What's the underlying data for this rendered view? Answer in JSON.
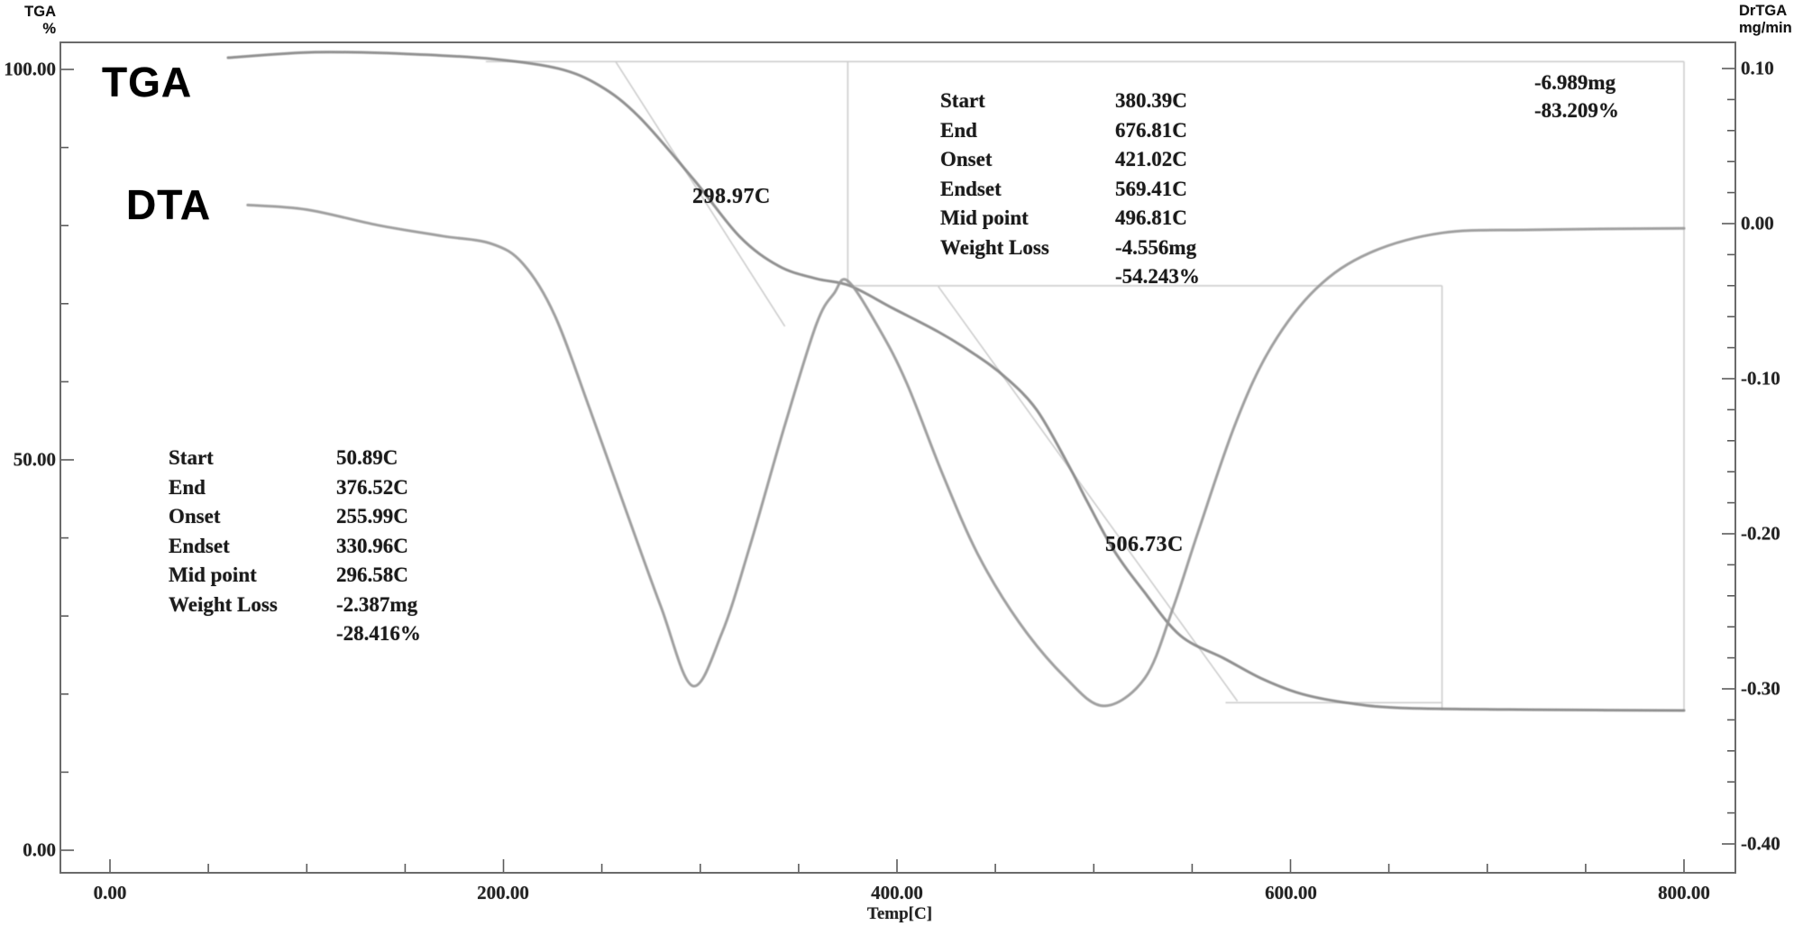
{
  "colors": {
    "tga_curve": "#878787",
    "dta_curve": "#979797",
    "construction_line": "#cdcdcd",
    "frame": "#6a6a6a",
    "text": "#1a1a1a"
  },
  "axes": {
    "left": {
      "title_line1": "TGA",
      "title_line2": "%",
      "ticks": [
        {
          "label": "100.00"
        },
        {
          "label": "50.00"
        },
        {
          "label": "0.00"
        }
      ]
    },
    "right": {
      "title_line1": "DrTGA",
      "title_line2": "mg/min",
      "ticks": [
        {
          "label": "0.10"
        },
        {
          "label": "0.00"
        },
        {
          "label": "-0.10"
        },
        {
          "label": "-0.20"
        },
        {
          "label": "-0.30"
        },
        {
          "label": "-0.40"
        }
      ]
    },
    "bottom": {
      "title": "Temp[C]",
      "ticks": [
        {
          "label": "0.00"
        },
        {
          "label": "200.00"
        },
        {
          "label": "400.00"
        },
        {
          "label": "600.00"
        },
        {
          "label": "800.00"
        }
      ]
    }
  },
  "curve_labels": {
    "tga": "TGA",
    "dta": "DTA"
  },
  "annotations": {
    "peak1": "298.97C",
    "peak2": "506.73C",
    "total_loss_mg": "-6.989mg",
    "total_loss_pct": "-83.209%",
    "block1": {
      "rows": [
        {
          "label": "Start",
          "value": "50.89C"
        },
        {
          "label": "End",
          "value": "376.52C"
        },
        {
          "label": "Onset",
          "value": "255.99C"
        },
        {
          "label": "Endset",
          "value": "330.96C"
        },
        {
          "label": "Mid point",
          "value": "296.58C"
        },
        {
          "label": "Weight Loss",
          "value": "-2.387mg"
        },
        {
          "label": "",
          "value": "-28.416%"
        }
      ]
    },
    "block2": {
      "rows": [
        {
          "label": "Start",
          "value": "380.39C"
        },
        {
          "label": "End",
          "value": "676.81C"
        },
        {
          "label": "Onset",
          "value": "421.02C"
        },
        {
          "label": "Endset",
          "value": "569.41C"
        },
        {
          "label": "Mid point",
          "value": "496.81C"
        },
        {
          "label": "Weight Loss",
          "value": "-4.556mg"
        },
        {
          "label": "",
          "value": "-54.243%"
        }
      ]
    }
  },
  "chart_data": {
    "type": "line",
    "title": "",
    "xlabel": "Temp[C]",
    "x_ticks": [
      0,
      200,
      400,
      600,
      800
    ],
    "x_minor_step": 50,
    "left_axis": {
      "label": "TGA %",
      "ticks": [
        0,
        50,
        100
      ],
      "minor_step": 10
    },
    "right_axis": {
      "label": "DrTGA mg/min",
      "ticks": [
        0.1,
        0.0,
        -0.1,
        -0.2,
        -0.3,
        -0.4
      ],
      "minor_step": 0.02
    },
    "legend_position": "none",
    "grid": false,
    "series": [
      {
        "name": "TGA",
        "axis": "left",
        "unit": "%",
        "points": [
          [
            60,
            101.5
          ],
          [
            104,
            102.2
          ],
          [
            150,
            102.0
          ],
          [
            196,
            101.3
          ],
          [
            228,
            100.1
          ],
          [
            249,
            97.9
          ],
          [
            269,
            93.9
          ],
          [
            297,
            85.8
          ],
          [
            320,
            78.6
          ],
          [
            340,
            74.8
          ],
          [
            359,
            73.2
          ],
          [
            376,
            72.3
          ],
          [
            398,
            69.4
          ],
          [
            421,
            66.4
          ],
          [
            439,
            63.6
          ],
          [
            455,
            60.6
          ],
          [
            471,
            56.4
          ],
          [
            487,
            49.4
          ],
          [
            497,
            44.5
          ],
          [
            510,
            38.5
          ],
          [
            525,
            33.3
          ],
          [
            544,
            27.5
          ],
          [
            566,
            24.6
          ],
          [
            586,
            21.9
          ],
          [
            606,
            20.0
          ],
          [
            631,
            18.8
          ],
          [
            659,
            18.2
          ],
          [
            723,
            18.0
          ],
          [
            800,
            17.9
          ]
        ]
      },
      {
        "name": "DTA (DrTGA)",
        "axis": "right",
        "unit": "mg/min",
        "points": [
          [
            70,
            0.012
          ],
          [
            100,
            0.009
          ],
          [
            136,
            -0.001
          ],
          [
            169,
            -0.008
          ],
          [
            194,
            -0.013
          ],
          [
            210,
            -0.026
          ],
          [
            226,
            -0.059
          ],
          [
            244,
            -0.12
          ],
          [
            262,
            -0.184
          ],
          [
            280,
            -0.247
          ],
          [
            296,
            -0.298
          ],
          [
            311,
            -0.264
          ],
          [
            325,
            -0.209
          ],
          [
            343,
            -0.13
          ],
          [
            359,
            -0.065
          ],
          [
            368,
            -0.045
          ],
          [
            375,
            -0.037
          ],
          [
            391,
            -0.068
          ],
          [
            405,
            -0.103
          ],
          [
            423,
            -0.161
          ],
          [
            441,
            -0.213
          ],
          [
            462,
            -0.257
          ],
          [
            485,
            -0.292
          ],
          [
            505,
            -0.311
          ],
          [
            526,
            -0.293
          ],
          [
            540,
            -0.249
          ],
          [
            553,
            -0.199
          ],
          [
            572,
            -0.129
          ],
          [
            590,
            -0.08
          ],
          [
            613,
            -0.042
          ],
          [
            640,
            -0.019
          ],
          [
            677,
            -0.006
          ],
          [
            723,
            -0.004
          ],
          [
            800,
            -0.003
          ]
        ]
      }
    ],
    "overlays": [
      {
        "name": "baseline-step1",
        "axis": "left",
        "points": [
          [
            191,
            101.0
          ],
          [
            800,
            101.0
          ]
        ]
      },
      {
        "name": "tangent-step1",
        "axis": "left",
        "points": [
          [
            257,
            101.0
          ],
          [
            343,
            67.1
          ]
        ]
      },
      {
        "name": "range-line-376c",
        "axis": "left",
        "points": [
          [
            375,
            101.0
          ],
          [
            375,
            72.5
          ]
        ]
      },
      {
        "name": "baseline-step2",
        "axis": "left",
        "points": [
          [
            376,
            72.3
          ],
          [
            677,
            72.3
          ]
        ]
      },
      {
        "name": "tangent-step2",
        "axis": "left",
        "points": [
          [
            421,
            72.2
          ],
          [
            573,
            19.1
          ]
        ]
      },
      {
        "name": "baseline-final",
        "axis": "left",
        "points": [
          [
            567,
            18.9
          ],
          [
            677,
            18.9
          ]
        ]
      },
      {
        "name": "range-line-677c",
        "axis": "left",
        "points": [
          [
            677,
            72.3
          ],
          [
            677,
            18.0
          ]
        ]
      },
      {
        "name": "range-line-800c",
        "axis": "left",
        "points": [
          [
            800,
            101.0
          ],
          [
            800,
            18.0
          ]
        ]
      }
    ],
    "analysis": {
      "step1": {
        "start_c": 50.89,
        "end_c": 376.52,
        "onset_c": 255.99,
        "endset_c": 330.96,
        "midpoint_c": 296.58,
        "weight_loss_mg": -2.387,
        "weight_loss_pct": -28.416,
        "drtga_peak_c": 298.97
      },
      "step2": {
        "start_c": 380.39,
        "end_c": 676.81,
        "onset_c": 421.02,
        "endset_c": 569.41,
        "midpoint_c": 496.81,
        "weight_loss_mg": -4.556,
        "weight_loss_pct": -54.243,
        "drtga_peak_c": 506.73
      },
      "total": {
        "weight_loss_mg": -6.989,
        "weight_loss_pct": -83.209
      }
    }
  }
}
